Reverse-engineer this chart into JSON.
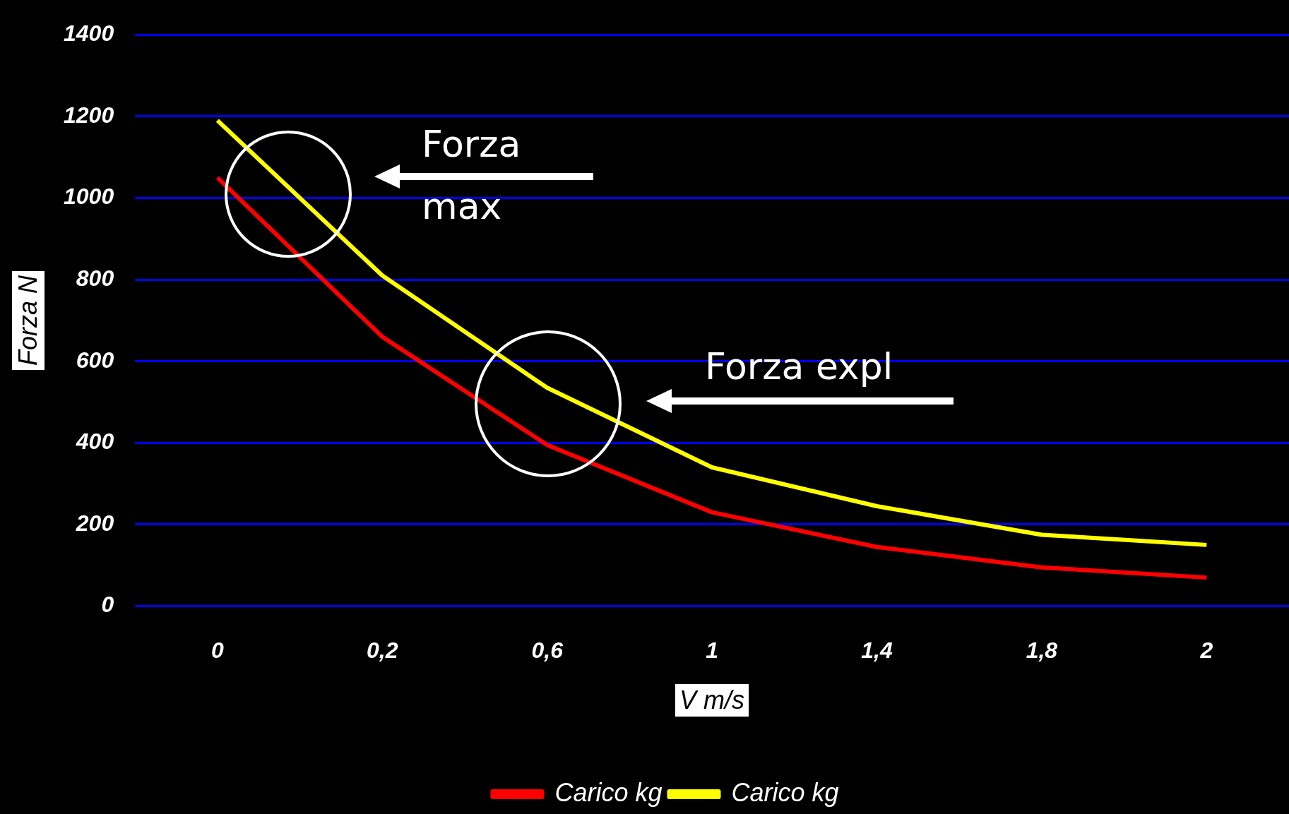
{
  "chart_data": {
    "type": "line",
    "xlabel": "V m/s",
    "ylabel": "Forza N",
    "categories": [
      "0",
      "0,2",
      "0,6",
      "1",
      "1,4",
      "1,8",
      "2"
    ],
    "series": [
      {
        "name": "Carico kg",
        "color": "#ff0000",
        "values": [
          1050,
          660,
          395,
          230,
          145,
          95,
          70
        ]
      },
      {
        "name": "Carico kg",
        "color": "#ffff00",
        "values": [
          1190,
          810,
          535,
          340,
          245,
          175,
          150
        ]
      }
    ],
    "ylim": [
      0,
      1400
    ],
    "yticks": [
      0,
      200,
      400,
      600,
      800,
      1000,
      1200,
      1400
    ],
    "grid": "y",
    "legend": "bottom",
    "marker": "none",
    "line_style": "solid",
    "annotations": [
      "Forza max",
      "Forza expl"
    ]
  }
}
